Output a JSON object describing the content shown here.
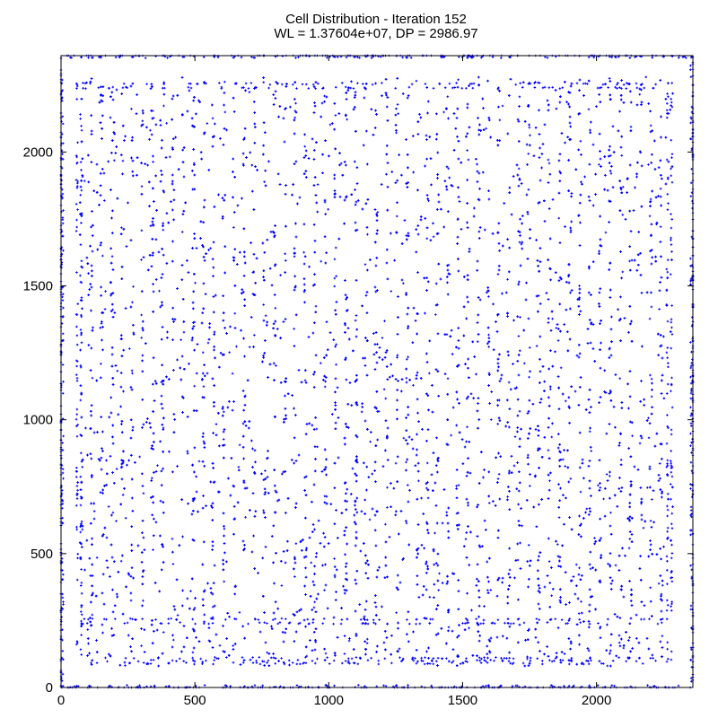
{
  "chart_data": {
    "type": "scatter",
    "title": "Cell Distribution - Iteration 152",
    "subtitle": "WL = 1.37604e+07, DP = 2986.97",
    "xlim": [
      0,
      2360
    ],
    "ylim": [
      0,
      2360
    ],
    "x_ticks": [
      0,
      500,
      1000,
      1500,
      2000
    ],
    "y_ticks": [
      0,
      500,
      1000,
      1500,
      2000
    ],
    "grid": false,
    "legend": "none",
    "marker_color": "#0000ff",
    "marker": "plus",
    "series": [
      {
        "row_lines": [
          90,
          100,
          110,
          240,
          255,
          2240,
          2255
        ],
        "column_lines": [
          60,
          75,
          2265,
          2280
        ],
        "boundary_lines": [
          0,
          2360
        ],
        "empty_regions": [
          {
            "x": [
              290,
              330
            ],
            "y": [
              1750,
              1830
            ]
          },
          {
            "x": [
              780,
              860
            ],
            "y": [
              860,
              990
            ]
          },
          {
            "x": [
              720,
              810
            ],
            "y": [
              1020,
              1120
            ]
          },
          {
            "x": [
              1590,
              1680
            ],
            "y": [
              1880,
              2020
            ]
          },
          {
            "x": [
              1950,
              2010
            ],
            "y": [
              1650,
              1800
            ]
          },
          {
            "x": [
              660,
              740
            ],
            "y": [
              300,
              420
            ]
          }
        ],
        "approx_point_count": 9000
      }
    ]
  }
}
